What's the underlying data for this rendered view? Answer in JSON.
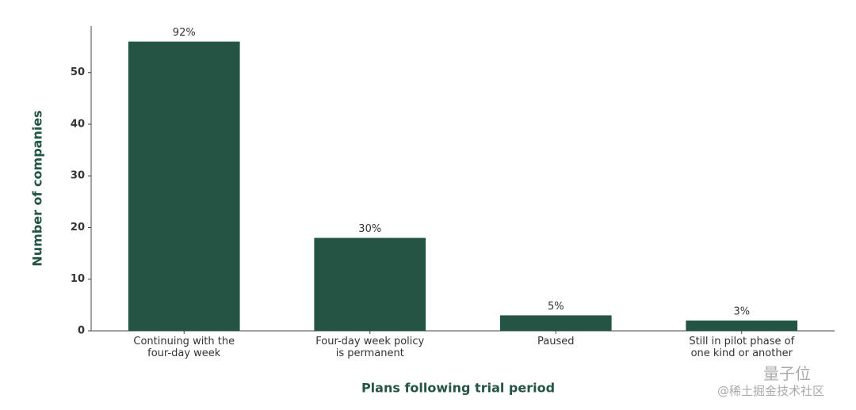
{
  "chart_data": {
    "type": "bar",
    "x_label": "Plans following trial period",
    "y_label": "Number of companies",
    "categories": [
      "Continuing with the\nfour-day week",
      "Four-day week policy\nis permanent",
      "Paused",
      "Still in pilot phase of\none kind or another"
    ],
    "values": [
      56,
      18,
      3,
      2
    ],
    "value_labels": [
      "92%",
      "30%",
      "5%",
      "3%"
    ],
    "color": "#245444",
    "ylim": [
      0,
      59
    ],
    "yticks": [
      0,
      10,
      20,
      30,
      40,
      50
    ],
    "grid": false
  },
  "watermark": {
    "logo": "量子位",
    "source": "@稀土掘金技术社区"
  }
}
